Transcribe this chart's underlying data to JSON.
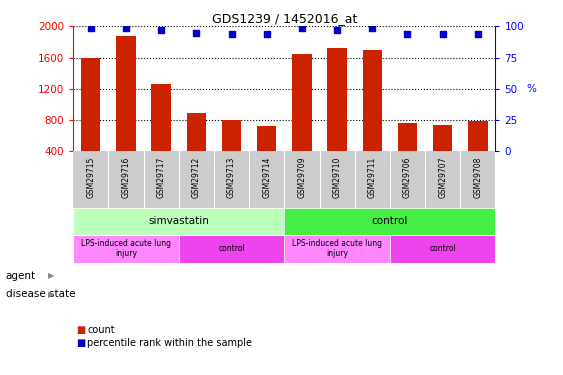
{
  "title": "GDS1239 / 1452016_at",
  "samples": [
    "GSM29715",
    "GSM29716",
    "GSM29717",
    "GSM29712",
    "GSM29713",
    "GSM29714",
    "GSM29709",
    "GSM29710",
    "GSM29711",
    "GSM29706",
    "GSM29707",
    "GSM29708"
  ],
  "counts": [
    1600,
    1870,
    1260,
    890,
    800,
    720,
    1650,
    1720,
    1700,
    760,
    730,
    790
  ],
  "percentiles": [
    99,
    99,
    97,
    95,
    94,
    94,
    99,
    97,
    99,
    94,
    94,
    94
  ],
  "ylim_left": [
    400,
    2000
  ],
  "ylim_right": [
    0,
    100
  ],
  "yticks_left": [
    400,
    800,
    1200,
    1600,
    2000
  ],
  "yticks_right": [
    0,
    25,
    50,
    75,
    100
  ],
  "bar_color": "#cc2200",
  "dot_color": "#0000cc",
  "agent_groups": [
    {
      "label": "simvastatin",
      "start": 0,
      "end": 6,
      "color": "#bbffbb"
    },
    {
      "label": "control",
      "start": 6,
      "end": 12,
      "color": "#44ee44"
    }
  ],
  "disease_groups": [
    {
      "label": "LPS-induced acute lung\ninjury",
      "start": 0,
      "end": 3,
      "color": "#ff88ff"
    },
    {
      "label": "control",
      "start": 3,
      "end": 6,
      "color": "#ee44ee"
    },
    {
      "label": "LPS-induced acute lung\ninjury",
      "start": 6,
      "end": 9,
      "color": "#ff88ff"
    },
    {
      "label": "control",
      "start": 9,
      "end": 12,
      "color": "#ee44ee"
    }
  ],
  "sample_bg_color": "#cccccc",
  "legend_items": [
    {
      "label": "count",
      "color": "#cc2200"
    },
    {
      "label": "percentile rank within the sample",
      "color": "#0000cc"
    }
  ],
  "arrow_color": "#888888"
}
